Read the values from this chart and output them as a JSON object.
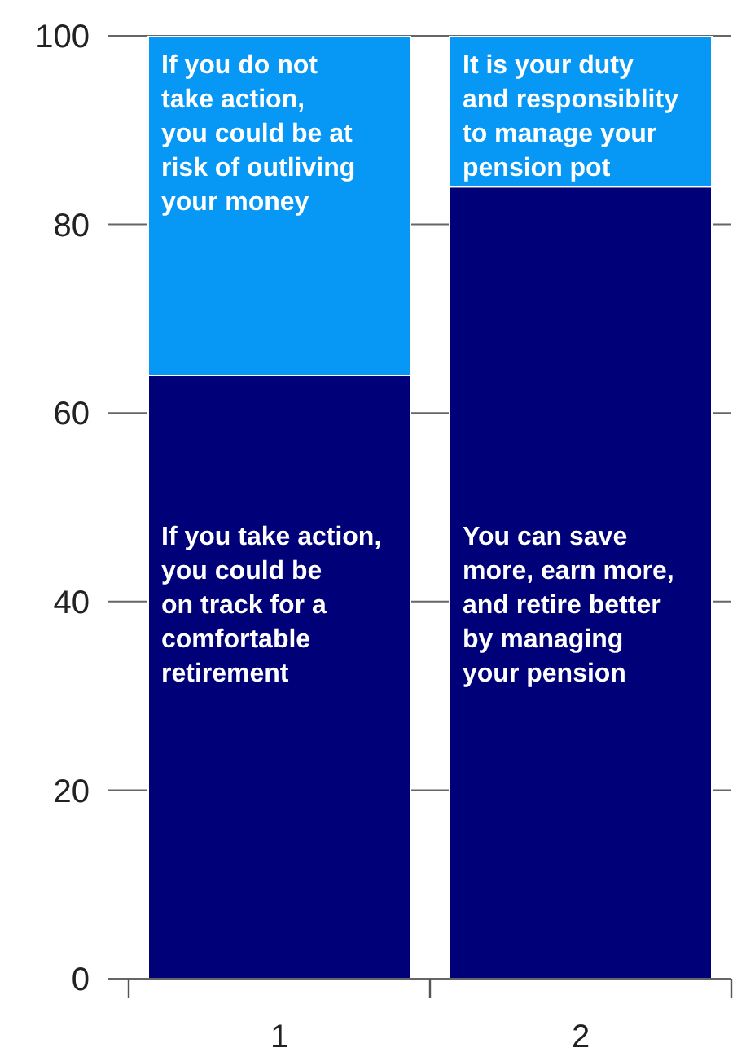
{
  "chart_data": {
    "type": "bar",
    "stacked": true,
    "categories": [
      "1",
      "2"
    ],
    "series": [
      {
        "color": "#000078",
        "values": [
          64,
          84
        ]
      },
      {
        "color": "#0797f5",
        "values": [
          36,
          16
        ]
      }
    ],
    "ylim": [
      0,
      100
    ],
    "yticks": [
      0,
      20,
      40,
      60,
      80,
      100
    ],
    "grid": "y",
    "annotations": [
      "If you do not\ntake action,\nyou could be at\nrisk of outliving\nyour money",
      "It is your duty\nand responsiblity\nto manage your\npension pot",
      "If you take action,\nyou could be\non track for a\ncomfortable\nretirement",
      "You can save\nmore, earn more,\nand retire better\nby managing\nyour pension"
    ]
  }
}
